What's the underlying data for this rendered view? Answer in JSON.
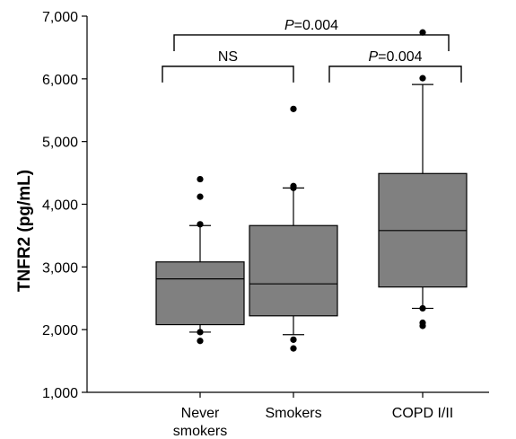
{
  "chart_data": {
    "type": "box",
    "ylabel": "TNFR2 (pg/mL)",
    "ylim": [
      1000,
      7000
    ],
    "yticks": [
      1000,
      2000,
      3000,
      4000,
      5000,
      6000,
      7000
    ],
    "ytick_labels": [
      "1,000",
      "2,000",
      "3,000",
      "4,000",
      "5,000",
      "6,000",
      "7,000"
    ],
    "box_color": "#808080",
    "groups": [
      {
        "label_lines": [
          "Never",
          "smokers"
        ],
        "whisker_low": 1960,
        "q1": 2080,
        "median": 2810,
        "q3": 3080,
        "whisker_high": 3660,
        "outliers": [
          1820,
          1960,
          3680,
          4120,
          4400
        ]
      },
      {
        "label_lines": [
          "Smokers"
        ],
        "whisker_low": 1920,
        "q1": 2220,
        "median": 2730,
        "q3": 3660,
        "whisker_high": 4260,
        "outliers": [
          1700,
          1840,
          4260,
          4290,
          5520
        ]
      },
      {
        "label_lines": [
          "COPD I/II"
        ],
        "whisker_low": 2340,
        "q1": 2680,
        "median": 3580,
        "q3": 4490,
        "whisker_high": 5910,
        "outliers": [
          2060,
          2110,
          2340,
          6010,
          6740
        ]
      }
    ],
    "annotations": [
      {
        "from": 0,
        "to": 2,
        "level": 6700,
        "p_label": "P",
        "text": "=0.004"
      },
      {
        "from": 0,
        "to": 1,
        "level": 6200,
        "text": "NS"
      },
      {
        "from": 1,
        "to": 2,
        "level": 6200,
        "p_label": "P",
        "text": "=0.004"
      }
    ]
  }
}
